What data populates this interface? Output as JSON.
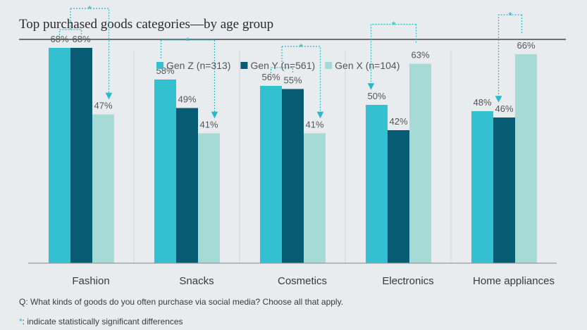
{
  "title": "Top purchased goods categories—by age group",
  "question": "Q: What kinds of goods do you often purchase via social media? Choose all that apply.",
  "footnote": {
    "symbol": "*",
    "text": ": indicate statistically significant differences"
  },
  "chart_data": {
    "type": "bar",
    "categories": [
      "Fashion",
      "Snacks",
      "Cosmetics",
      "Electronics",
      "Home appliances"
    ],
    "series": [
      {
        "name": "Gen Z (n=313)",
        "color": "#33c1d1",
        "values": [
          68,
          58,
          56,
          50,
          48
        ]
      },
      {
        "name": "Gen Y (n=561)",
        "color": "#075c73",
        "values": [
          68,
          49,
          55,
          42,
          46
        ]
      },
      {
        "name": "Gen X (n=104)",
        "color": "#a6dad6",
        "values": [
          47,
          41,
          41,
          63,
          66
        ]
      }
    ],
    "value_suffix": "%",
    "ylim": [
      0,
      75
    ],
    "grid": false,
    "legend_position": "top-right",
    "significance_marker": "*",
    "significance": [
      {
        "category": "Fashion",
        "group": [
          "Gen Z (n=313)",
          "Gen Y (n=561)"
        ],
        "vs": "Gen X (n=104)"
      },
      {
        "category": "Snacks",
        "group": [
          "Gen Z (n=313)"
        ],
        "vs": "Gen X (n=104)"
      },
      {
        "category": "Cosmetics",
        "group": [
          "Gen Z (n=313)",
          "Gen Y (n=561)"
        ],
        "vs": "Gen X (n=104)"
      },
      {
        "category": "Electronics",
        "group": [
          "Gen X (n=104)"
        ],
        "vs": "Gen Z (n=313)"
      },
      {
        "category": "Home appliances",
        "group": [
          "Gen X (n=104)"
        ],
        "vs": "Gen Y (n=561)"
      }
    ],
    "colors": {
      "axis": "#9a9a9a",
      "separator": "#d2d6d9",
      "label": "#555555",
      "category_label": "#3a3a3a",
      "bracket": "#2bb8c9"
    }
  }
}
